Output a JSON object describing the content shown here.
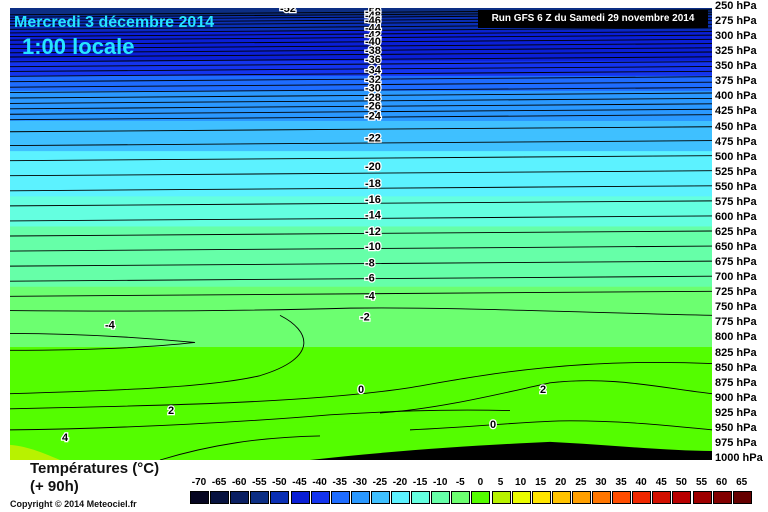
{
  "header": {
    "date": "Mercredi 3 décembre 2014",
    "time": "1:00 locale",
    "run": "Run GFS 6 Z du Samedi 29 novembre 2014"
  },
  "footer": {
    "title_line1": "Températures (°C)",
    "title_line2": "(+ 90h)",
    "copyright": "Copyright © 2014 Meteociel.fr"
  },
  "chart_data": {
    "type": "heatmap",
    "title": "Températures (°C)",
    "subtitle": "(+ 90h)",
    "y_axis": {
      "unit": "hPa",
      "range": [
        1000,
        250
      ],
      "ticks": [
        "250 hPa",
        "275 hPa",
        "300 hPa",
        "325 hPa",
        "350 hPa",
        "375 hPa",
        "400 hPa",
        "425 hPa",
        "450 hPa",
        "475 hPa",
        "500 hPa",
        "525 hPa",
        "550 hPa",
        "575 hPa",
        "600 hPa",
        "625 hPa",
        "650 hPa",
        "675 hPa",
        "700 hPa",
        "725 hPa",
        "750 hPa",
        "775 hPa",
        "800 hPa",
        "825 hPa",
        "850 hPa",
        "875 hPa",
        "900 hPa",
        "925 hPa",
        "950 hPa",
        "975 hPa",
        "1000 hPa"
      ]
    },
    "temperature_by_level": [
      {
        "hPa": 250,
        "t": -52
      },
      {
        "hPa": 275,
        "t": -49
      },
      {
        "hPa": 300,
        "t": -45
      },
      {
        "hPa": 325,
        "t": -41
      },
      {
        "hPa": 350,
        "t": -37
      },
      {
        "hPa": 375,
        "t": -34
      },
      {
        "hPa": 400,
        "t": -30
      },
      {
        "hPa": 425,
        "t": -27
      },
      {
        "hPa": 450,
        "t": -24
      },
      {
        "hPa": 475,
        "t": -22
      },
      {
        "hPa": 500,
        "t": -20
      },
      {
        "hPa": 525,
        "t": -18
      },
      {
        "hPa": 550,
        "t": -16
      },
      {
        "hPa": 575,
        "t": -14
      },
      {
        "hPa": 600,
        "t": -12
      },
      {
        "hPa": 625,
        "t": -10
      },
      {
        "hPa": 650,
        "t": -9
      },
      {
        "hPa": 675,
        "t": -7
      },
      {
        "hPa": 700,
        "t": -6
      },
      {
        "hPa": 725,
        "t": -4
      },
      {
        "hPa": 750,
        "t": -2
      },
      {
        "hPa": 775,
        "t": -2
      },
      {
        "hPa": 800,
        "t": -1
      },
      {
        "hPa": 825,
        "t": 0
      },
      {
        "hPa": 850,
        "t": 0
      },
      {
        "hPa": 875,
        "t": 0
      },
      {
        "hPa": 900,
        "t": 1
      },
      {
        "hPa": 925,
        "t": 2
      },
      {
        "hPa": 950,
        "t": 2
      },
      {
        "hPa": 975,
        "t": 3
      },
      {
        "hPa": 1000,
        "t": 3
      }
    ],
    "contour_labels": [
      {
        "text": "-52",
        "hPa": 250
      },
      {
        "text": "-50",
        "hPa": 255
      },
      {
        "text": "-48",
        "hPa": 262
      },
      {
        "text": "-46",
        "hPa": 270
      },
      {
        "text": "-44",
        "hPa": 282
      },
      {
        "text": "-42",
        "hPa": 294
      },
      {
        "text": "-40",
        "hPa": 305
      },
      {
        "text": "-38",
        "hPa": 320
      },
      {
        "text": "-36",
        "hPa": 335
      },
      {
        "text": "-34",
        "hPa": 352
      },
      {
        "text": "-32",
        "hPa": 368
      },
      {
        "text": "-30",
        "hPa": 382
      },
      {
        "text": "-28",
        "hPa": 398
      },
      {
        "text": "-26",
        "hPa": 412
      },
      {
        "text": "-24",
        "hPa": 428
      },
      {
        "text": "-22",
        "hPa": 465
      },
      {
        "text": "-20",
        "hPa": 512
      },
      {
        "text": "-18",
        "hPa": 540
      },
      {
        "text": "-16",
        "hPa": 567
      },
      {
        "text": "-14",
        "hPa": 593
      },
      {
        "text": "-12",
        "hPa": 620
      },
      {
        "text": "-10",
        "hPa": 645
      },
      {
        "text": "-8",
        "hPa": 672
      },
      {
        "text": "-6",
        "hPa": 697
      },
      {
        "text": "-4",
        "hPa": 727
      },
      {
        "text": "-2",
        "hPa": 762
      },
      {
        "text": "-4",
        "hPa": 775
      },
      {
        "text": "0",
        "hPa": 882
      },
      {
        "text": "2",
        "hPa": 882
      },
      {
        "text": "2",
        "hPa": 917
      },
      {
        "text": "0",
        "hPa": 940
      },
      {
        "text": "4",
        "hPa": 962
      }
    ],
    "color_scale": {
      "unit": "°C",
      "labels": [
        "-70",
        "-65",
        "-60",
        "-55",
        "-50",
        "-45",
        "-40",
        "-35",
        "-30",
        "-25",
        "-20",
        "-15",
        "-10",
        "-5",
        "0",
        "5",
        "10",
        "15",
        "20",
        "25",
        "30",
        "35",
        "40",
        "45",
        "50",
        "55",
        "60",
        "65"
      ],
      "colors": [
        "#050520",
        "#07123f",
        "#0a1f62",
        "#0c2e84",
        "#0a2fb4",
        "#0a1fd6",
        "#1434ee",
        "#1e6cff",
        "#2a98ff",
        "#3fc0ff",
        "#5cf2ff",
        "#64ffe0",
        "#66ffa8",
        "#6cff70",
        "#54fd00",
        "#b8f200",
        "#eafc00",
        "#ffe500",
        "#ffc300",
        "#ff9f00",
        "#ff7600",
        "#ff4d00",
        "#f02800",
        "#d21000",
        "#b80000",
        "#9e0000",
        "#820000",
        "#650000"
      ]
    },
    "grid": false,
    "legend_placement": "bottom"
  }
}
